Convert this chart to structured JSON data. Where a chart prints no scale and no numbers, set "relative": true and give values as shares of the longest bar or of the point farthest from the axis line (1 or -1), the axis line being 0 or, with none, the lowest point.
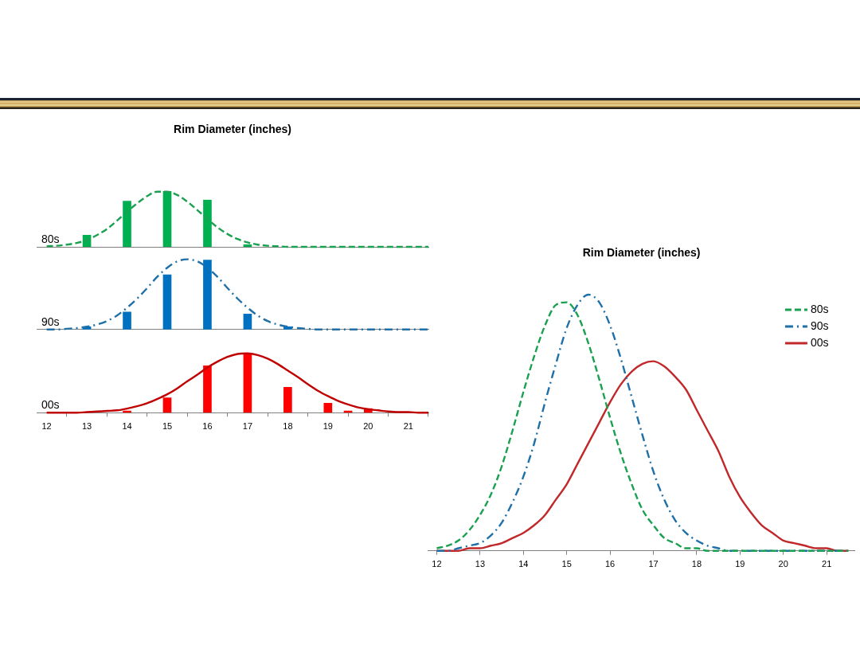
{
  "chart_data": [
    {
      "type": "bar",
      "title": "Rim Diameter (inches)",
      "relative": true,
      "xlim": [
        11.75,
        21.5
      ],
      "tick_labels": false,
      "x": [
        12,
        12.25,
        12.5,
        12.75,
        13,
        13.25,
        13.5,
        13.75,
        14,
        14.25,
        14.5,
        14.75,
        15,
        15.25,
        15.5,
        15.75,
        16,
        16.25,
        16.5,
        16.75,
        17,
        17.25,
        17.5,
        17.75,
        18,
        18.25,
        18.5,
        18.75,
        19,
        19.25,
        19.5,
        19.75,
        20,
        20.25,
        20.5,
        20.75,
        21,
        21.25,
        21.5
      ],
      "series": [
        {
          "name": "80s",
          "type": "bar",
          "color": "#00b050",
          "x": [
            13,
            14,
            15,
            16,
            17
          ],
          "values": [
            0.21,
            0.82,
            1.0,
            0.84,
            0.04
          ]
        },
        {
          "type": "line",
          "color": "#1aa050",
          "line_style": "dashed",
          "values": [
            0.01,
            0.02,
            0.04,
            0.07,
            0.12,
            0.21,
            0.32,
            0.47,
            0.63,
            0.78,
            0.91,
            0.99,
            0.99,
            0.93,
            0.81,
            0.66,
            0.5,
            0.35,
            0.23,
            0.14,
            0.08,
            0.04,
            0.02,
            0.01,
            0,
            0,
            0,
            0,
            0,
            0,
            0,
            0,
            0,
            0,
            0,
            0,
            0,
            0,
            0
          ]
        }
      ]
    },
    {
      "type": "bar",
      "relative": true,
      "xlim": [
        11.75,
        21.5
      ],
      "tick_labels": false,
      "x": [
        12,
        12.25,
        12.5,
        12.75,
        13,
        13.25,
        13.5,
        13.75,
        14,
        14.25,
        14.5,
        14.75,
        15,
        15.25,
        15.5,
        15.75,
        16,
        16.25,
        16.5,
        16.75,
        17,
        17.25,
        17.5,
        17.75,
        18,
        18.25,
        18.5,
        18.75,
        19,
        19.25,
        19.5,
        19.75,
        20,
        20.25,
        20.5,
        20.75,
        21,
        21.25,
        21.5
      ],
      "series": [
        {
          "name": "90s",
          "type": "bar",
          "color": "#0070c0",
          "x": [
            13,
            14,
            15,
            16,
            17,
            18
          ],
          "values": [
            0.04,
            0.25,
            0.78,
            0.99,
            0.22,
            0.04
          ]
        },
        {
          "type": "line",
          "color": "#1f6fa8",
          "line_style": "dashdot",
          "values": [
            0,
            0,
            0.01,
            0.02,
            0.04,
            0.07,
            0.12,
            0.2,
            0.31,
            0.44,
            0.59,
            0.75,
            0.88,
            0.97,
            1,
            0.97,
            0.88,
            0.75,
            0.59,
            0.44,
            0.31,
            0.2,
            0.12,
            0.07,
            0.04,
            0.02,
            0.01,
            0,
            0,
            0,
            0,
            0,
            0,
            0,
            0,
            0,
            0,
            0,
            0
          ]
        }
      ]
    },
    {
      "type": "bar",
      "relative": true,
      "xlim": [
        11.75,
        21.5
      ],
      "xticks": [
        12,
        13,
        14,
        15,
        16,
        17,
        18,
        19,
        20,
        21
      ],
      "tick_labels": "x",
      "x": [
        12,
        12.25,
        12.5,
        12.75,
        13,
        13.25,
        13.5,
        13.75,
        14,
        14.25,
        14.5,
        14.75,
        15,
        15.25,
        15.5,
        15.75,
        16,
        16.25,
        16.5,
        16.75,
        17,
        17.25,
        17.5,
        17.75,
        18,
        18.25,
        18.5,
        18.75,
        19,
        19.25,
        19.5,
        19.75,
        20,
        20.25,
        20.5,
        20.75,
        21,
        21.25,
        21.5
      ],
      "series": [
        {
          "name": "00s",
          "type": "bar",
          "color": "#ff0000",
          "x": [
            14,
            15,
            16,
            17,
            18,
            19,
            19.5,
            20
          ],
          "values": [
            0.03,
            0.25,
            0.79,
            1.0,
            0.43,
            0.16,
            0.03,
            0.07
          ]
        },
        {
          "type": "line",
          "color": "#c00000",
          "line_style": "solid",
          "values": [
            0,
            0,
            0,
            0,
            0.01,
            0.02,
            0.03,
            0.04,
            0.07,
            0.11,
            0.16,
            0.23,
            0.31,
            0.41,
            0.53,
            0.64,
            0.76,
            0.86,
            0.94,
            0.99,
            1,
            0.97,
            0.91,
            0.82,
            0.71,
            0.6,
            0.48,
            0.37,
            0.28,
            0.2,
            0.14,
            0.09,
            0.06,
            0.04,
            0.02,
            0.01,
            0.01,
            0,
            0
          ]
        }
      ]
    },
    {
      "type": "line",
      "title": "Rim Diameter (inches)",
      "relative": true,
      "xlim": [
        11.8,
        21.65
      ],
      "xticks": [
        12,
        13,
        14,
        15,
        16,
        17,
        18,
        19,
        20,
        21
      ],
      "tick_labels": "x",
      "legend": "top right",
      "x": [
        12,
        12.25,
        12.5,
        12.75,
        13,
        13.25,
        13.5,
        13.75,
        14,
        14.25,
        14.5,
        14.75,
        15,
        15.25,
        15.5,
        15.75,
        16,
        16.25,
        16.5,
        16.75,
        17,
        17.25,
        17.5,
        17.75,
        18,
        18.25,
        18.5,
        18.75,
        19,
        19.25,
        19.5,
        19.75,
        20,
        20.25,
        20.5,
        20.75,
        21,
        21.25,
        21.5
      ],
      "series": [
        {
          "name": "80s",
          "color": "#1aa050",
          "line_style": "dashed",
          "values": [
            0.01,
            0.02,
            0.04,
            0.08,
            0.14,
            0.22,
            0.33,
            0.47,
            0.62,
            0.76,
            0.88,
            0.96,
            0.97,
            0.92,
            0.81,
            0.67,
            0.52,
            0.38,
            0.26,
            0.16,
            0.1,
            0.05,
            0.03,
            0.01,
            0.01,
            0,
            0,
            0,
            0,
            0,
            0,
            0,
            0,
            0,
            0,
            0,
            0,
            0,
            0
          ]
        },
        {
          "name": "90s",
          "color": "#1f6fa8",
          "line_style": "dashdot",
          "values": [
            0,
            0,
            0.01,
            0.02,
            0.03,
            0.06,
            0.11,
            0.19,
            0.29,
            0.42,
            0.58,
            0.73,
            0.87,
            0.96,
            1,
            0.97,
            0.88,
            0.75,
            0.6,
            0.45,
            0.31,
            0.2,
            0.12,
            0.07,
            0.04,
            0.02,
            0.01,
            0,
            0,
            0,
            0,
            0,
            0,
            0,
            0,
            0,
            0,
            0,
            0
          ]
        },
        {
          "name": "00s",
          "color": "#c0282a",
          "line_style": "solid",
          "values": [
            0,
            0,
            0,
            0.01,
            0.01,
            0.02,
            0.03,
            0.05,
            0.07,
            0.1,
            0.14,
            0.2,
            0.26,
            0.34,
            0.42,
            0.5,
            0.58,
            0.65,
            0.7,
            0.73,
            0.74,
            0.72,
            0.68,
            0.63,
            0.55,
            0.47,
            0.39,
            0.29,
            0.21,
            0.15,
            0.1,
            0.07,
            0.04,
            0.03,
            0.02,
            0.01,
            0.01,
            0,
            0
          ]
        }
      ]
    }
  ]
}
